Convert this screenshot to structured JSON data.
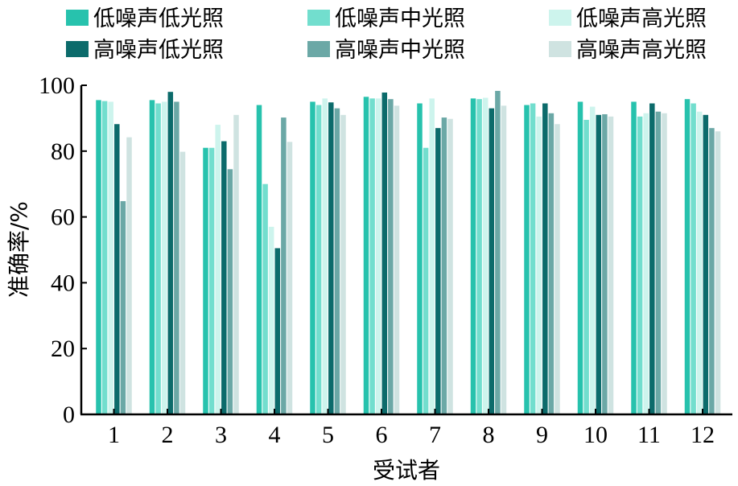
{
  "chart_data": {
    "type": "bar",
    "xlabel": "受试者",
    "ylabel": "准确率/%",
    "ylim": [
      0,
      100
    ],
    "yticks": [
      "0",
      "20",
      "40",
      "60",
      "80",
      "100"
    ],
    "categories": [
      "1",
      "2",
      "3",
      "4",
      "5",
      "6",
      "7",
      "8",
      "9",
      "10",
      "11",
      "12"
    ],
    "grid": false,
    "legend_position": "top",
    "series": [
      {
        "name": "低噪声低光照",
        "color": "#27c2ad",
        "values": [
          95.5,
          95.5,
          81,
          94,
          95,
          96.5,
          94.5,
          96,
          94,
          95,
          95,
          95.8
        ]
      },
      {
        "name": "低噪声中光照",
        "color": "#72dece",
        "values": [
          95.2,
          94.5,
          81,
          70,
          94,
          96,
          81,
          95.8,
          94.5,
          89.5,
          90.5,
          94.5
        ]
      },
      {
        "name": "低噪声高光照",
        "color": "#cdf4ed",
        "values": [
          95,
          95,
          88,
          57,
          96,
          96,
          96,
          96.2,
          90.5,
          93.5,
          91.5,
          92
        ]
      },
      {
        "name": "高噪声低光照",
        "color": "#0c6b6b",
        "values": [
          88.2,
          98,
          83,
          50.5,
          94.8,
          97.8,
          87,
          93,
          94.5,
          91,
          94.5,
          91
        ]
      },
      {
        "name": "高噪声中光照",
        "color": "#6ba8a6",
        "values": [
          64.8,
          95,
          74.5,
          90.2,
          93,
          95.8,
          90.2,
          98.3,
          91.5,
          91.2,
          92,
          87
        ]
      },
      {
        "name": "高噪声高光照",
        "color": "#cfe3e1",
        "values": [
          84.2,
          79.8,
          91,
          82.8,
          91,
          93.8,
          89.8,
          93.8,
          88.2,
          90.5,
          91.5,
          86
        ]
      }
    ]
  }
}
